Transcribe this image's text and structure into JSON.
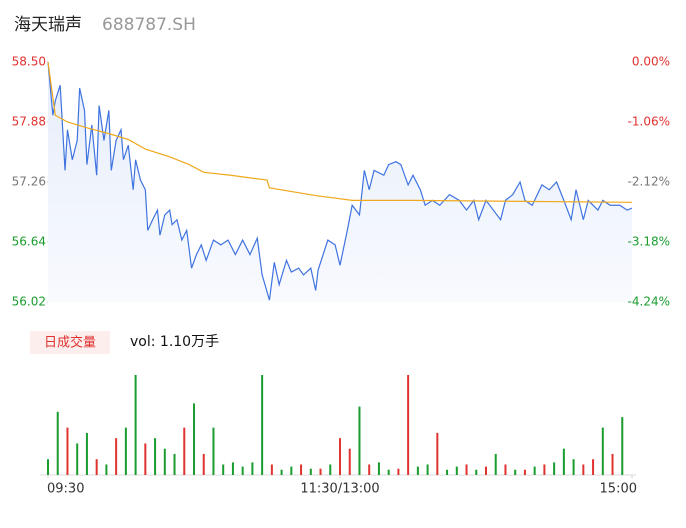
{
  "chart_data": {
    "type": "line",
    "title": "海天瑞声",
    "subtitle": "688787.SH",
    "xlim": [
      0,
      240
    ],
    "xticks": [
      {
        "value": 0,
        "label": "09:30"
      },
      {
        "value": 120,
        "label": "11:30/13:00"
      },
      {
        "value": 240,
        "label": "15:00"
      }
    ],
    "ylim": [
      56.02,
      58.5
    ],
    "yticks": [
      56.02,
      56.64,
      57.26,
      57.88,
      {
        "value": 58.5,
        "label": "58.50"
      }
    ],
    "y2lim": [
      -4.24,
      0
    ],
    "y2ticks": [
      {
        "value": -4.24,
        "label": "-4.24%"
      },
      {
        "value": -3.18,
        "label": "-3.18%"
      },
      {
        "value": -2.12,
        "label": "-2.12%"
      },
      {
        "value": -1.06,
        "label": "-1.06%"
      },
      {
        "value": 0,
        "label": "0.00%"
      }
    ],
    "up_color": "#e0322f",
    "flat_color": "#777777",
    "down_color": "#1a9c2e",
    "series": [
      {
        "name": "price",
        "color": "#3f73e0",
        "x": [
          0,
          2,
          3,
          5,
          7,
          8,
          10,
          12,
          13,
          15,
          16,
          18,
          20,
          21,
          23,
          25,
          26,
          28,
          30,
          31,
          33,
          35,
          36,
          38,
          40,
          41,
          43,
          45,
          46,
          48,
          50,
          51,
          53,
          55,
          57,
          59,
          61,
          63,
          65,
          68,
          71,
          74,
          77,
          80,
          83,
          86,
          88,
          91,
          93,
          95,
          98,
          100,
          103,
          105,
          108,
          110,
          111,
          115,
          118,
          120,
          123,
          125,
          128,
          130,
          132,
          134,
          138,
          140,
          143,
          145,
          148,
          150,
          153,
          155,
          158,
          161,
          165,
          169,
          172,
          175,
          177,
          180,
          183,
          186,
          188,
          191,
          194,
          196,
          199,
          203,
          206,
          209,
          212,
          215,
          217,
          220,
          222,
          226,
          228,
          231,
          235,
          238,
          240
        ],
        "values": [
          58.5,
          57.95,
          58.1,
          58.26,
          57.38,
          57.8,
          57.49,
          57.69,
          58.23,
          58.0,
          57.44,
          57.85,
          57.33,
          58.05,
          57.69,
          58.0,
          57.38,
          57.69,
          57.8,
          57.49,
          57.64,
          57.18,
          57.49,
          57.28,
          57.18,
          56.76,
          56.87,
          56.97,
          56.71,
          56.92,
          56.97,
          56.82,
          56.87,
          56.66,
          56.76,
          56.37,
          56.51,
          56.61,
          56.45,
          56.66,
          56.61,
          56.66,
          56.51,
          56.66,
          56.51,
          56.68,
          56.3,
          56.04,
          56.43,
          56.2,
          56.45,
          56.33,
          56.37,
          56.3,
          56.37,
          56.14,
          56.35,
          56.66,
          56.61,
          56.4,
          56.76,
          57.02,
          56.92,
          57.38,
          57.18,
          57.38,
          57.33,
          57.44,
          57.47,
          57.44,
          57.23,
          57.33,
          57.18,
          57.02,
          57.07,
          57.02,
          57.13,
          57.07,
          56.97,
          57.07,
          56.87,
          57.07,
          56.97,
          56.87,
          57.07,
          57.13,
          57.26,
          57.07,
          57.02,
          57.23,
          57.18,
          57.26,
          57.07,
          56.87,
          57.18,
          56.87,
          57.07,
          56.97,
          57.07,
          57.02,
          57.02,
          56.97,
          56.99
        ]
      },
      {
        "name": "average",
        "color": "#f0a81c",
        "x": [
          0,
          3,
          8,
          16,
          25,
          33,
          40,
          50,
          58,
          64,
          75,
          90,
          91,
          110,
          125,
          150,
          240
        ],
        "values": [
          58.5,
          57.95,
          57.88,
          57.82,
          57.76,
          57.7,
          57.6,
          57.52,
          57.44,
          57.36,
          57.33,
          57.28,
          57.2,
          57.12,
          57.07,
          57.07,
          57.05
        ]
      }
    ],
    "volume": {
      "label": "日成交量",
      "summary": "vol: 1.10万手",
      "x": [
        0,
        4,
        8,
        12,
        16,
        20,
        24,
        28,
        32,
        36,
        40,
        44,
        48,
        52,
        56,
        60,
        64,
        68,
        72,
        76,
        80,
        84,
        88,
        92,
        96,
        100,
        104,
        108,
        112,
        116,
        120,
        124,
        128,
        132,
        136,
        140,
        144,
        148,
        152,
        156,
        160,
        164,
        168,
        172,
        176,
        180,
        184,
        188,
        192,
        196,
        200,
        204,
        208,
        212,
        216,
        220,
        224,
        228,
        232,
        236
      ],
      "values": [
        15,
        60,
        45,
        30,
        40,
        15,
        10,
        35,
        45,
        95,
        30,
        35,
        25,
        20,
        45,
        68,
        20,
        45,
        10,
        12,
        8,
        12,
        95,
        10,
        5,
        8,
        10,
        6,
        6,
        10,
        35,
        25,
        65,
        10,
        12,
        5,
        6,
        95,
        8,
        10,
        40,
        5,
        8,
        10,
        5,
        8,
        20,
        10,
        5,
        5,
        8,
        10,
        12,
        25,
        15,
        10,
        15,
        45,
        20,
        55
      ],
      "colors": [
        "#1a9c2e",
        "#1a9c2e",
        "#e0322f",
        "#1a9c2e",
        "#1a9c2e",
        "#e0322f",
        "#1a9c2e",
        "#e0322f",
        "#1a9c2e",
        "#1a9c2e",
        "#e0322f",
        "#1a9c2e",
        "#1a9c2e",
        "#1a9c2e",
        "#e0322f",
        "#1a9c2e",
        "#e0322f",
        "#1a9c2e",
        "#1a9c2e",
        "#1a9c2e",
        "#1a9c2e",
        "#1a9c2e",
        "#1a9c2e",
        "#e0322f",
        "#1a9c2e",
        "#1a9c2e",
        "#e0322f",
        "#1a9c2e",
        "#e0322f",
        "#1a9c2e",
        "#e0322f",
        "#e0322f",
        "#1a9c2e",
        "#e0322f",
        "#1a9c2e",
        "#1a9c2e",
        "#e0322f",
        "#e0322f",
        "#1a9c2e",
        "#1a9c2e",
        "#e0322f",
        "#1a9c2e",
        "#1a9c2e",
        "#e0322f",
        "#1a9c2e",
        "#e0322f",
        "#1a9c2e",
        "#e0322f",
        "#1a9c2e",
        "#e0322f",
        "#1a9c2e",
        "#e0322f",
        "#1a9c2e",
        "#1a9c2e",
        "#1a9c2e",
        "#e0322f",
        "#e0322f",
        "#1a9c2e",
        "#e0322f",
        "#1a9c2e"
      ]
    }
  }
}
